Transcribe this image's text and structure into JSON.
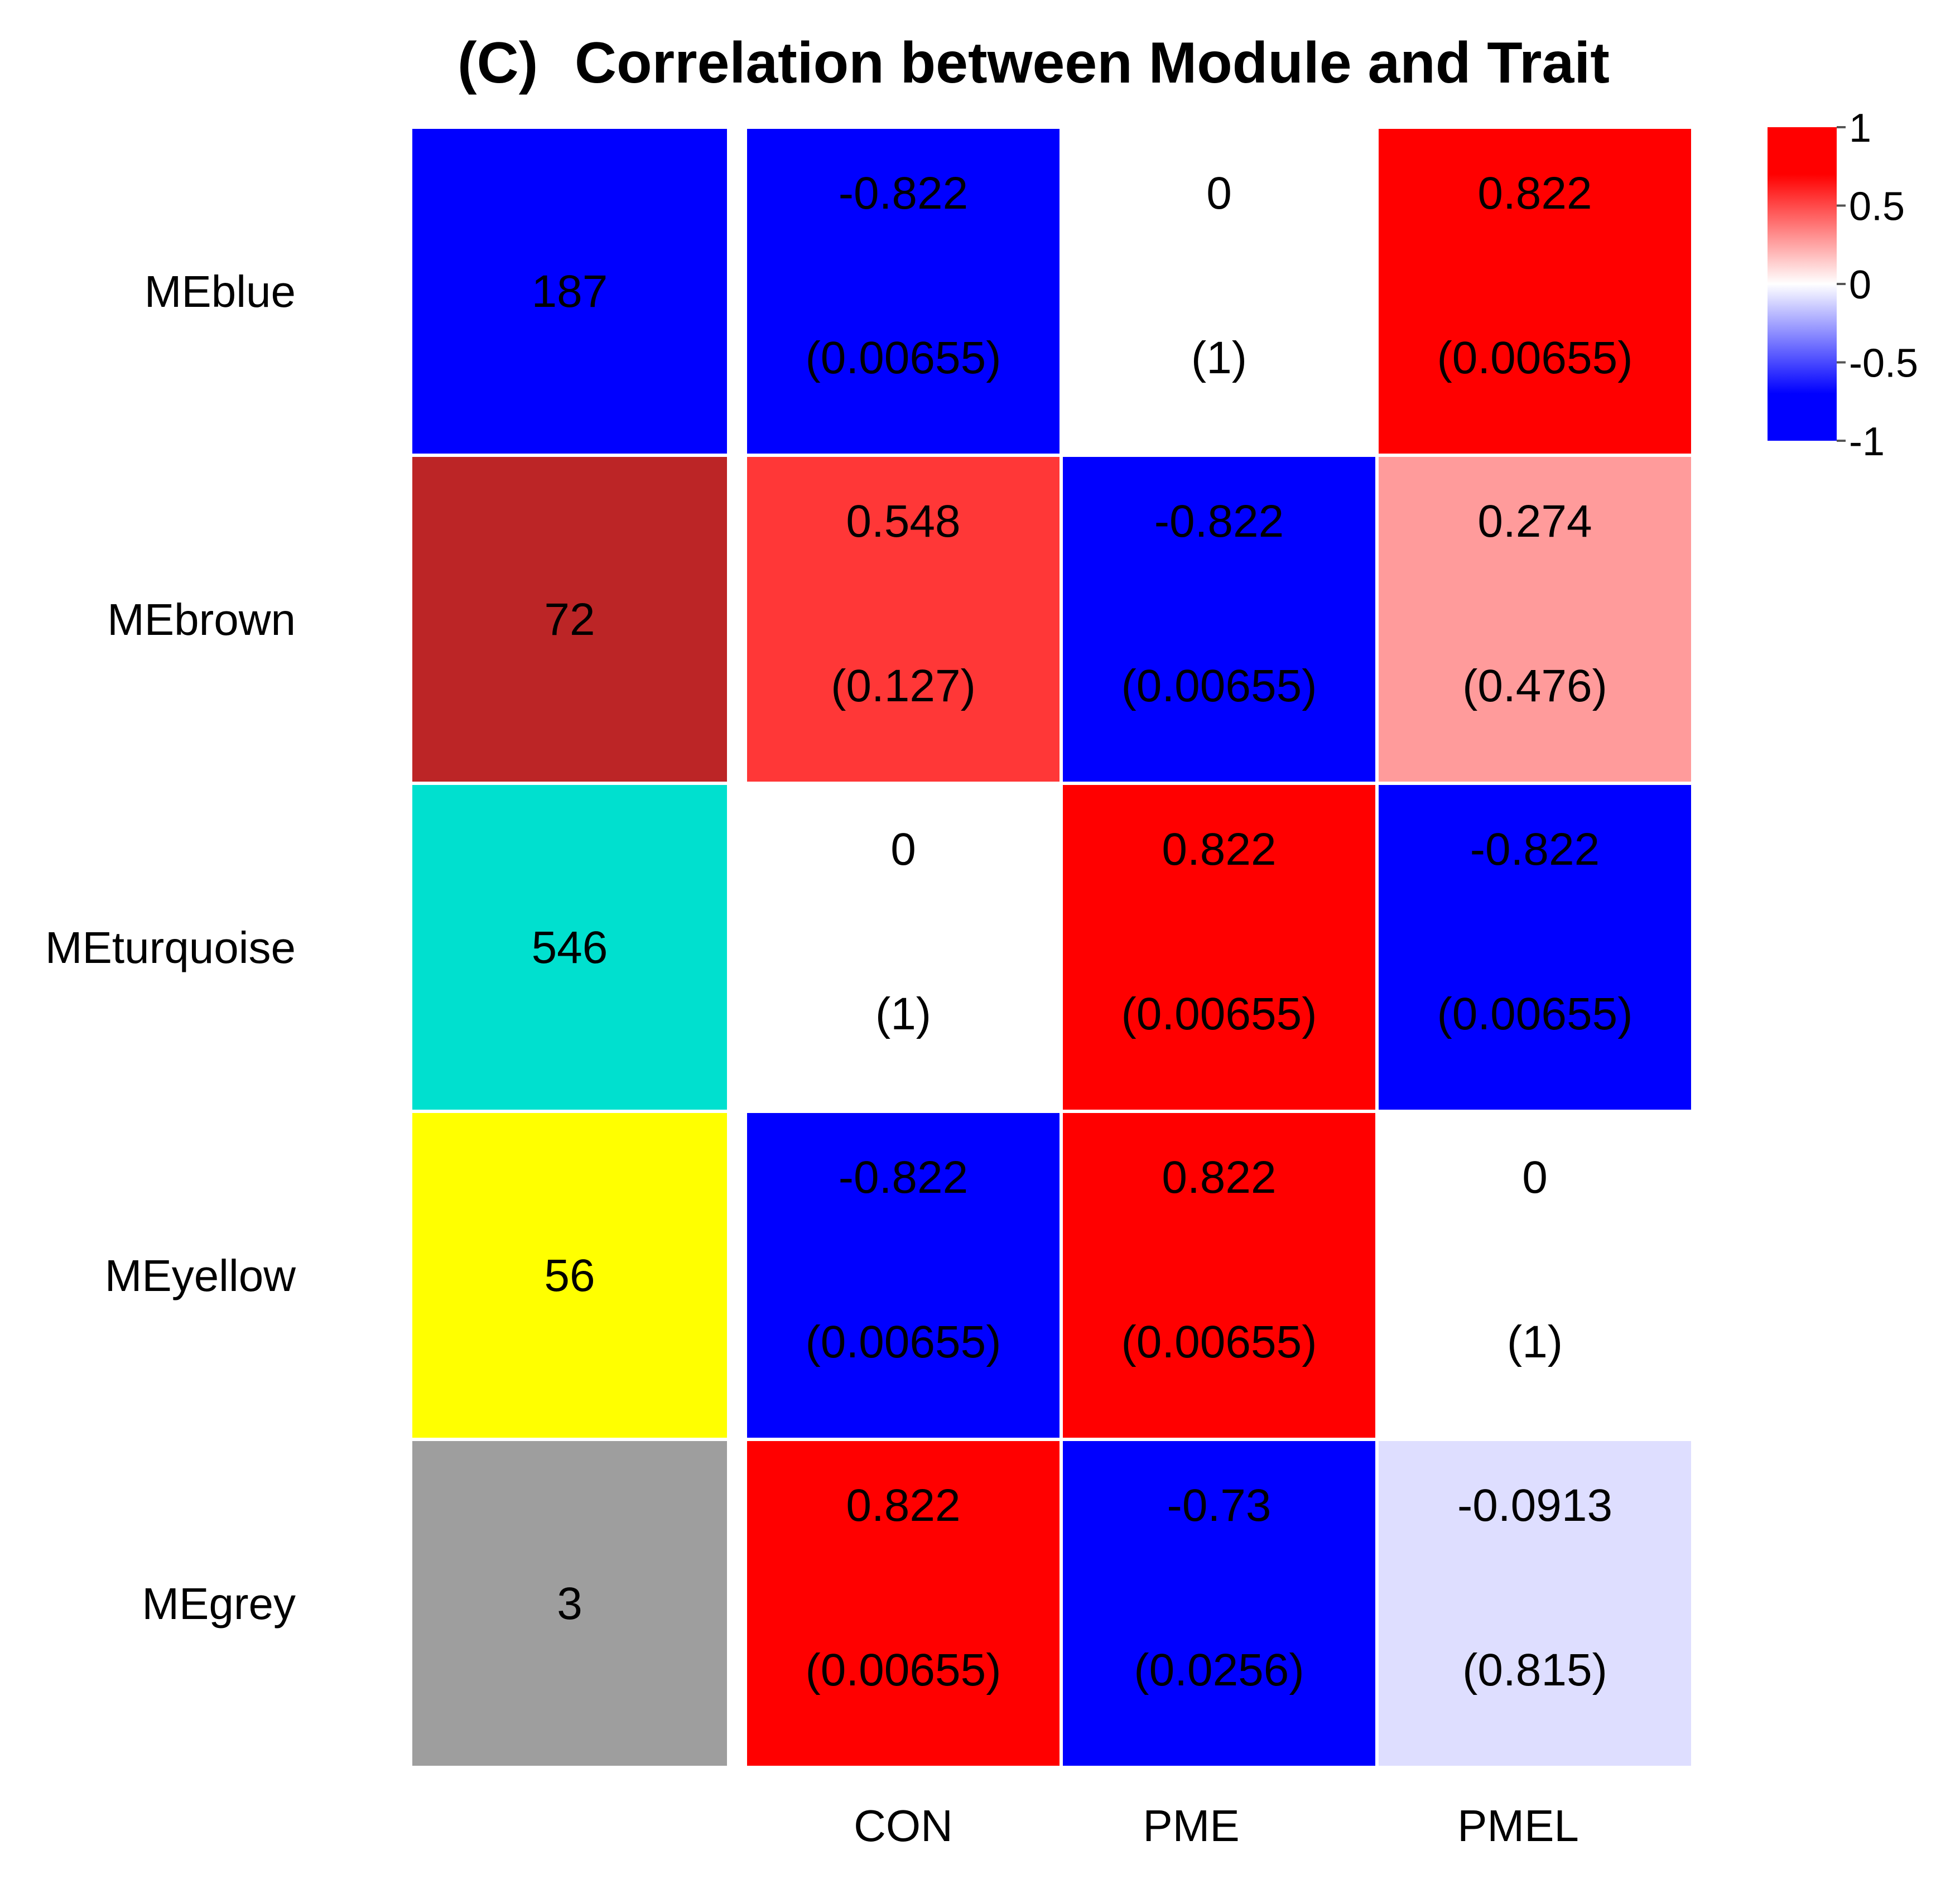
{
  "chart_data": {
    "type": "heatmap",
    "title_prefix": "(C)",
    "title": "Correlation between Module and Trait",
    "rows": [
      "MEblue",
      "MEbrown",
      "MEturquoise",
      "MEyellow",
      "MEgrey"
    ],
    "module_colors": [
      "#0000ff",
      "#bc2526",
      "#00e0cf",
      "#ffff00",
      "#9e9e9e"
    ],
    "module_sizes": [
      "187",
      "72",
      "546",
      "56",
      "3"
    ],
    "columns": [
      "CON",
      "PME",
      "PMEL"
    ],
    "correlations": [
      [
        -0.822,
        0,
        0.822
      ],
      [
        0.548,
        -0.822,
        0.274
      ],
      [
        0,
        0.822,
        -0.822
      ],
      [
        -0.822,
        0.822,
        0
      ],
      [
        0.822,
        -0.73,
        -0.0913
      ]
    ],
    "correlation_labels": [
      [
        "-0.822",
        "0",
        "0.822"
      ],
      [
        "0.548",
        "-0.822",
        "0.274"
      ],
      [
        "0",
        "0.822",
        "-0.822"
      ],
      [
        "-0.822",
        "0.822",
        "0"
      ],
      [
        "0.822",
        "-0.73",
        "-0.0913"
      ]
    ],
    "pvalue_labels": [
      [
        "(0.00655)",
        "(1)",
        "(0.00655)"
      ],
      [
        "(0.127)",
        "(0.00655)",
        "(0.476)"
      ],
      [
        "(1)",
        "(0.00655)",
        "(0.00655)"
      ],
      [
        "(0.00655)",
        "(0.00655)",
        "(1)"
      ],
      [
        "(0.00655)",
        "(0.0256)",
        "(0.815)"
      ]
    ],
    "color_scale": {
      "min": -1,
      "max": 1,
      "low_color": "#0000ff",
      "mid_color": "#ffffff",
      "high_color": "#ff0000",
      "saturation_at": 0.7
    },
    "legend": {
      "position": "top-right",
      "ticks": [
        1,
        0.5,
        0,
        -0.5,
        -1
      ],
      "tick_labels": [
        "1",
        "0.5",
        "0",
        "-0.5",
        "-1"
      ]
    }
  }
}
